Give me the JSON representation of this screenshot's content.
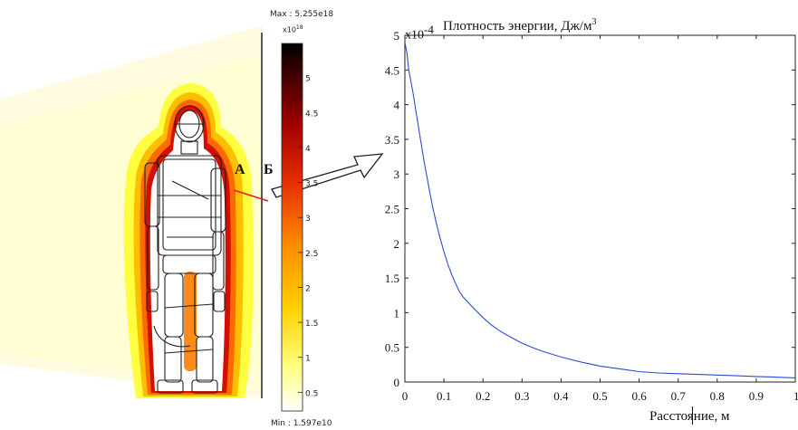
{
  "figure": {
    "colorbar": {
      "max_label": "Max : 5.255e18",
      "min_label": "Min : 1.597e10",
      "exponent_label": "x10",
      "exponent_power": "18",
      "ticks": [
        "5",
        "4.5",
        "4",
        "3.5",
        "3",
        "2.5",
        "2",
        "1.5",
        "1",
        "0.5"
      ],
      "colors": [
        "#ffffff",
        "#ffff66",
        "#ffe500",
        "#ffb000",
        "#ff7a00",
        "#ee3a00",
        "#c80000",
        "#8a0000",
        "#3a0000",
        "#000000"
      ]
    },
    "labels": {
      "point_a": "А",
      "point_b": "Б"
    },
    "line_color": "#e02020"
  },
  "chart_data": {
    "type": "line",
    "title": "Плотность энергии, Дж/м",
    "title_superscript": "3",
    "y_multiplier": "x10",
    "y_multiplier_power": "-4",
    "xlabel": "Расстояние, м",
    "ylabel": "",
    "xlim": [
      0,
      1
    ],
    "ylim": [
      0,
      5
    ],
    "x_ticks": [
      "0",
      "0.1",
      "0.2",
      "0.3",
      "0.4",
      "0.5",
      "0.6",
      "0.7",
      "0.8",
      "0.9",
      "1"
    ],
    "y_ticks": [
      "0",
      "0.5",
      "1",
      "1.5",
      "2",
      "2.5",
      "3",
      "3.5",
      "4",
      "4.5",
      "5"
    ],
    "series": [
      {
        "color": "#2b4bd6",
        "x": [
          0,
          0.005,
          0.01,
          0.02,
          0.03,
          0.04,
          0.05,
          0.06,
          0.07,
          0.08,
          0.09,
          0.1,
          0.11,
          0.12,
          0.13,
          0.14,
          0.15,
          0.16,
          0.17,
          0.18,
          0.2,
          0.22,
          0.24,
          0.26,
          0.28,
          0.3,
          0.33,
          0.36,
          0.4,
          0.45,
          0.5,
          0.55,
          0.6,
          0.65,
          0.7,
          0.75,
          0.8,
          0.85,
          0.9,
          0.95,
          1
        ],
        "y": [
          4.9,
          4.75,
          4.5,
          4.2,
          3.85,
          3.5,
          3.15,
          2.85,
          2.55,
          2.3,
          2.08,
          1.88,
          1.7,
          1.55,
          1.42,
          1.3,
          1.22,
          1.16,
          1.1,
          1.04,
          0.93,
          0.83,
          0.75,
          0.68,
          0.62,
          0.56,
          0.49,
          0.43,
          0.36,
          0.29,
          0.23,
          0.19,
          0.15,
          0.13,
          0.12,
          0.11,
          0.1,
          0.09,
          0.08,
          0.07,
          0.06
        ]
      }
    ]
  }
}
